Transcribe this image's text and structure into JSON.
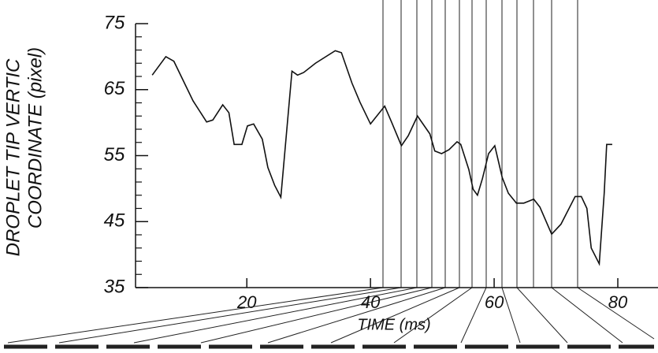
{
  "chart_data": {
    "type": "line",
    "y_label_line1": "DROPLET TIP VERTIC",
    "y_label_line2": "COORDINATE (pixel)",
    "x_label": "TIME (ms)",
    "x": [
      4.7,
      6.9,
      8.2,
      11.3,
      13.5,
      14.5,
      16.1,
      17.1,
      17.95,
      19.2,
      20.1,
      21.1,
      22.5,
      23.4,
      24.5,
      25.5,
      27.3,
      28.2,
      29.2,
      31.1,
      34.3,
      35.3,
      37,
      38.3,
      40,
      42.3,
      43.4,
      45,
      46.1,
      47.6,
      49.6,
      50.4,
      51.5,
      52.7,
      54,
      54.6,
      55.9,
      56.6,
      57.3,
      58.1,
      59.1,
      60.1,
      61.3,
      62.3,
      63.6,
      64.8,
      66.4,
      67.4,
      69.3,
      70.8,
      73.1,
      74.1,
      75,
      75.7,
      77,
      77.8,
      78.2,
      79.1
    ],
    "series": [
      {
        "color": "#111111",
        "values": [
          67.2,
          70,
          69.3,
          63.3,
          60.1,
          60.4,
          62.7,
          61.5,
          56.7,
          56.7,
          59.5,
          59.8,
          57.5,
          53.2,
          50.5,
          48.7,
          67.8,
          67.2,
          67.6,
          69,
          70.9,
          70.6,
          66,
          63.1,
          59.8,
          62.5,
          60.1,
          56.5,
          58,
          61,
          58.3,
          55.7,
          55.3,
          55.9,
          57.1,
          56.7,
          52.9,
          49.9,
          49,
          51.5,
          55.3,
          56.5,
          51.7,
          49.3,
          47.8,
          47.8,
          48.4,
          47.2,
          43.1,
          44.6,
          48.8,
          48.8,
          47,
          41,
          38.6,
          49.3,
          56.7,
          56.7
        ]
      }
    ],
    "xlim": [
      2,
      86.5
    ],
    "xticks": [
      20,
      40,
      60,
      80
    ],
    "ylim": [
      35,
      75
    ],
    "yticks": [
      35,
      45,
      55,
      65,
      75
    ]
  }
}
